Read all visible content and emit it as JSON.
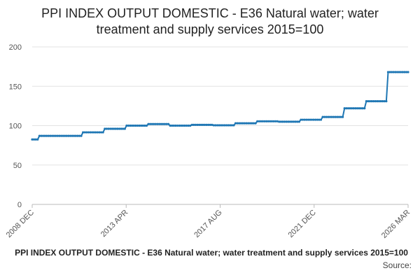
{
  "chart_data": {
    "type": "line",
    "title": "PPI INDEX OUTPUT DOMESTIC - E36 Natural water; water treatment and supply services 2015=100",
    "title_lines": [
      "PPI INDEX OUTPUT DOMESTIC - E36 Natural water; water",
      "treatment and supply services 2015=100"
    ],
    "xlabel": "",
    "ylabel": "",
    "ylim": [
      0,
      200
    ],
    "yticks": [
      0,
      50,
      100,
      150,
      200
    ],
    "x_tick_labels": [
      "2008 DEC",
      "2013 APR",
      "2017 AUG",
      "2021 DEC",
      "2026 MAR"
    ],
    "x_range": [
      "2008-12",
      "2026-03"
    ],
    "grid": true,
    "legend_placement": "bottom",
    "color": "#1f77b4",
    "series": [
      {
        "name": "PPI INDEX OUTPUT DOMESTIC - E36 Natural water; water treatment and supply services 2015=100",
        "steps": [
          {
            "from": "2008-12",
            "value": 82.5
          },
          {
            "from": "2009-04",
            "value": 87.0
          },
          {
            "from": "2011-04",
            "value": 91.5
          },
          {
            "from": "2012-04",
            "value": 96.0
          },
          {
            "from": "2013-04",
            "value": 100.0
          },
          {
            "from": "2014-04",
            "value": 102.0
          },
          {
            "from": "2015-04",
            "value": 100.0
          },
          {
            "from": "2016-04",
            "value": 101.0
          },
          {
            "from": "2017-04",
            "value": 100.5
          },
          {
            "from": "2018-04",
            "value": 103.0
          },
          {
            "from": "2019-04",
            "value": 105.5
          },
          {
            "from": "2020-04",
            "value": 105.0
          },
          {
            "from": "2021-04",
            "value": 107.5
          },
          {
            "from": "2022-04",
            "value": 111.0
          },
          {
            "from": "2023-04",
            "value": 122.0
          },
          {
            "from": "2024-04",
            "value": 131.0
          },
          {
            "from": "2025-04",
            "value": 168.0
          }
        ],
        "end": "2026-03"
      }
    ]
  },
  "footer": {
    "legend_text": "PPI INDEX OUTPUT DOMESTIC - E36 Natural water; water treatment and supply services 2015=100",
    "source_label": "Source:"
  }
}
